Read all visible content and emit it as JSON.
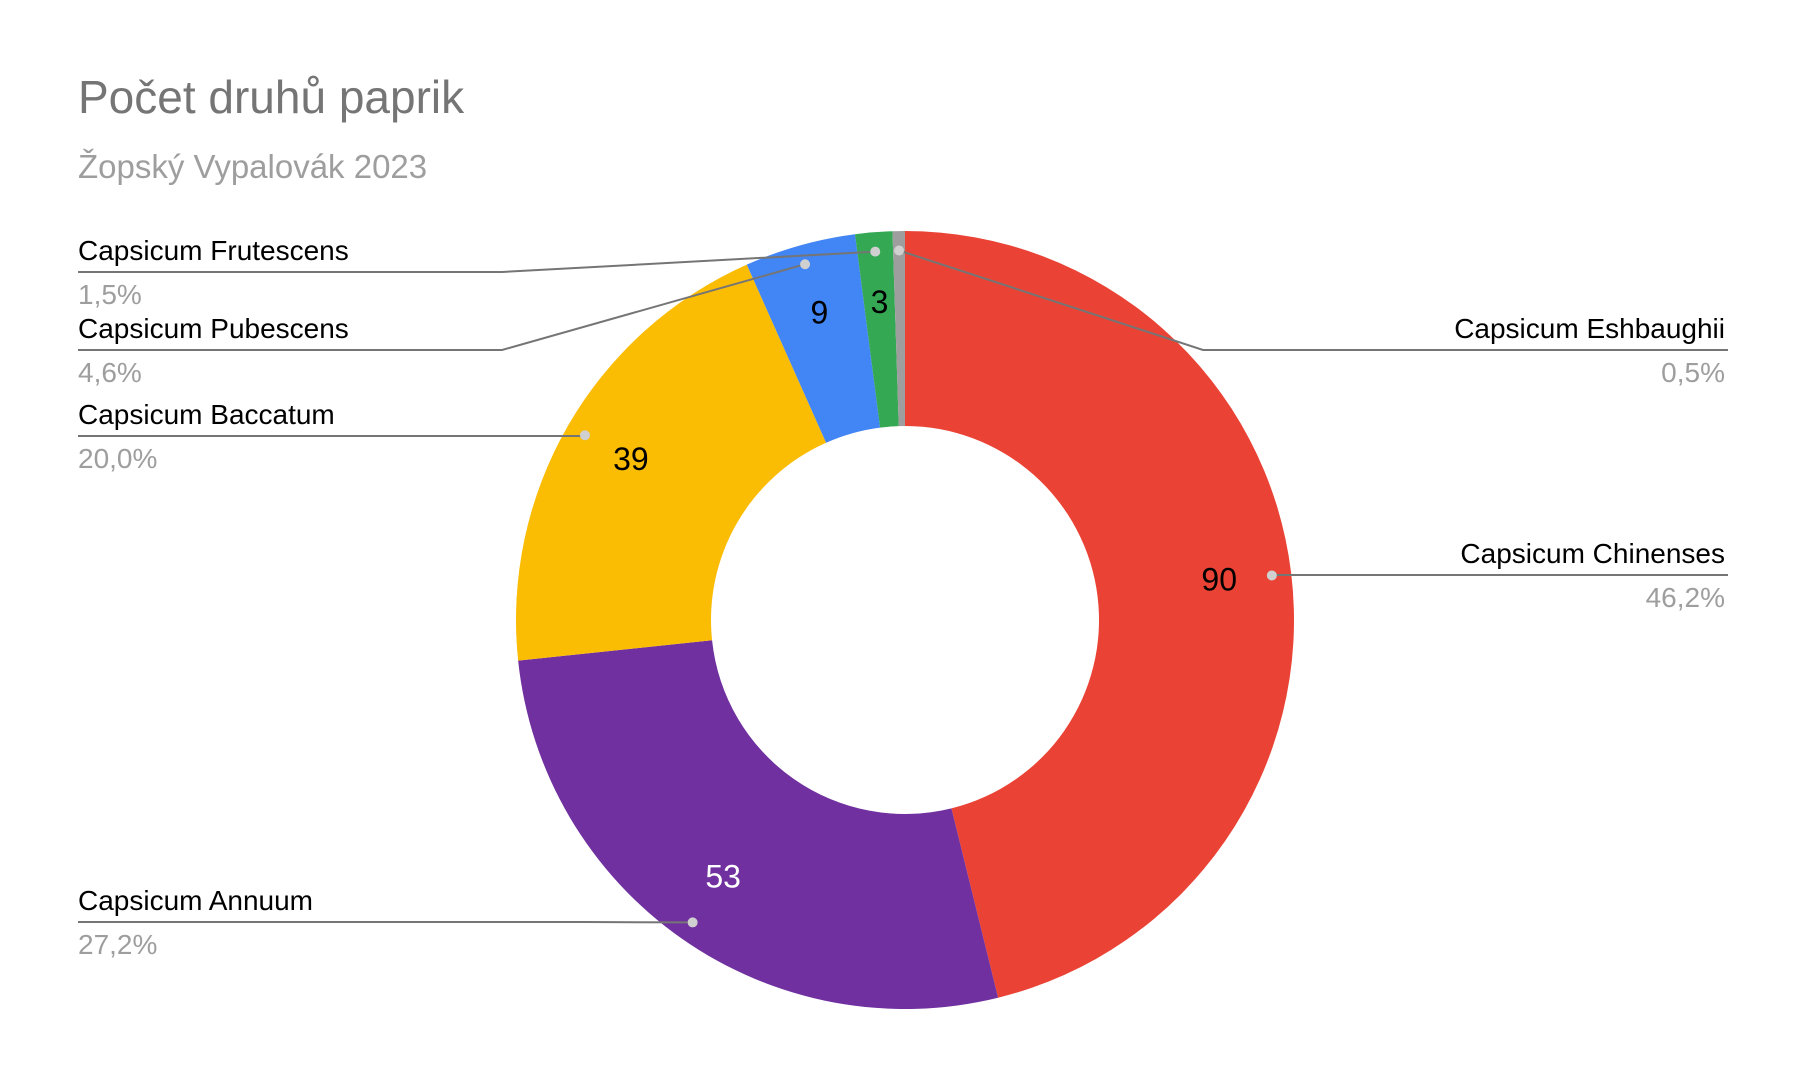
{
  "chart_data": {
    "type": "donut",
    "title": "Počet druhů paprik",
    "subtitle": "Žopský Vypalovák 2023",
    "categories": [
      "Capsicum Chinenses",
      "Capsicum Annuum",
      "Capsicum Baccatum",
      "Capsicum Pubescens",
      "Capsicum Frutescens",
      "Capsicum Eshbaughii"
    ],
    "values": [
      90,
      53,
      39,
      9,
      3,
      1
    ],
    "percent_labels": [
      "46,2%",
      "27,2%",
      "20,0%",
      "4,6%",
      "1,5%",
      "0,5%"
    ],
    "colors": [
      "#ea4335",
      "#7030a0",
      "#fbbc04",
      "#4285f4",
      "#34a853",
      "#9e9e9e"
    ]
  }
}
